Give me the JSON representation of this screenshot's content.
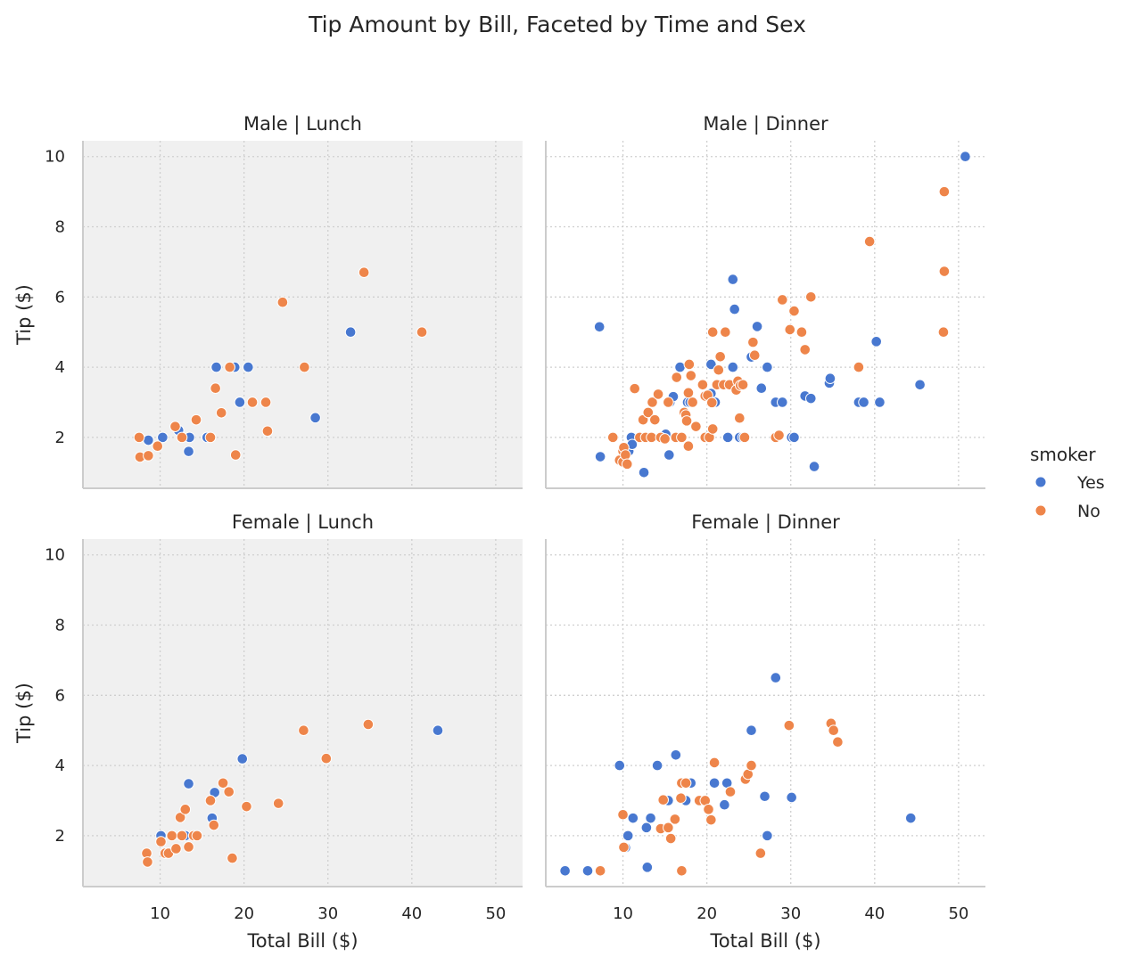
{
  "chart_data": {
    "type": "scatter",
    "title": "Tip Amount by Bill, Faceted by Time and Sex",
    "xlabel": "Total Bill ($)",
    "ylabel": "Tip ($)",
    "xlim": [
      0.8,
      53.2
    ],
    "ylim": [
      0.55,
      10.45
    ],
    "xticks": [
      10,
      20,
      30,
      40,
      50
    ],
    "yticks": [
      2,
      4,
      6,
      8,
      10
    ],
    "grid": true,
    "legend": {
      "title": "smoker",
      "position": "right",
      "entries": [
        {
          "name": "Yes",
          "color": "#4878d0"
        },
        {
          "name": "No",
          "color": "#ee854a"
        }
      ]
    },
    "facets": [
      {
        "title": "Male | Lunch",
        "background": "#f0f0f0",
        "series": [
          {
            "name": "Yes",
            "color": "#4878d0",
            "points": [
              [
                8.6,
                1.92
              ],
              [
                10.3,
                2.0
              ],
              [
                12.2,
                2.2
              ],
              [
                13.4,
                1.6
              ],
              [
                13.5,
                2.0
              ],
              [
                15.6,
                2.0
              ],
              [
                16.7,
                4.0
              ],
              [
                18.9,
                4.0
              ],
              [
                19.5,
                3.0
              ],
              [
                20.5,
                4.0
              ],
              [
                32.7,
                5.0
              ],
              [
                28.5,
                2.56
              ]
            ]
          },
          {
            "name": "No",
            "color": "#ee854a",
            "points": [
              [
                7.5,
                2.0
              ],
              [
                7.6,
                1.44
              ],
              [
                8.6,
                1.48
              ],
              [
                9.7,
                1.75
              ],
              [
                11.8,
                2.31
              ],
              [
                12.6,
                2.0
              ],
              [
                14.3,
                2.5
              ],
              [
                16.0,
                2.0
              ],
              [
                16.6,
                3.4
              ],
              [
                17.3,
                2.7
              ],
              [
                18.3,
                4.0
              ],
              [
                19.0,
                1.5
              ],
              [
                21.0,
                3.0
              ],
              [
                22.6,
                3.0
              ],
              [
                22.8,
                2.18
              ],
              [
                24.6,
                5.85
              ],
              [
                27.2,
                4.0
              ],
              [
                34.3,
                6.7
              ],
              [
                41.2,
                5.0
              ]
            ]
          }
        ]
      },
      {
        "title": "Male | Dinner",
        "background": "#ffffff",
        "series": [
          {
            "name": "Yes",
            "color": "#4878d0",
            "points": [
              [
                7.3,
                1.45
              ],
              [
                7.2,
                5.15
              ],
              [
                10.7,
                1.61
              ],
              [
                11.0,
                2.0
              ],
              [
                11.1,
                1.8
              ],
              [
                12.5,
                1.0
              ],
              [
                15.0,
                2.0
              ],
              [
                15.1,
                2.09
              ],
              [
                15.5,
                1.5
              ],
              [
                15.6,
                3.0
              ],
              [
                16.0,
                3.16
              ],
              [
                16.8,
                4.0
              ],
              [
                17.7,
                3.0
              ],
              [
                18.0,
                3.0
              ],
              [
                20.5,
                4.08
              ],
              [
                20.5,
                3.25
              ],
              [
                21.0,
                3.0
              ],
              [
                22.5,
                2.0
              ],
              [
                23.1,
                4.0
              ],
              [
                23.1,
                6.5
              ],
              [
                23.3,
                5.65
              ],
              [
                23.9,
                2.0
              ],
              [
                24.3,
                2.0
              ],
              [
                25.3,
                4.29
              ],
              [
                26.0,
                5.16
              ],
              [
                26.5,
                3.4
              ],
              [
                27.2,
                4.0
              ],
              [
                28.2,
                3.0
              ],
              [
                29.0,
                3.0
              ],
              [
                30.1,
                2.0
              ],
              [
                30.4,
                2.0
              ],
              [
                31.7,
                3.18
              ],
              [
                32.4,
                3.11
              ],
              [
                32.8,
                1.17
              ],
              [
                34.6,
                3.55
              ],
              [
                34.7,
                3.68
              ],
              [
                38.1,
                3.0
              ],
              [
                38.7,
                3.0
              ],
              [
                40.2,
                4.73
              ],
              [
                40.6,
                3.0
              ],
              [
                45.4,
                3.5
              ],
              [
                50.8,
                10.0
              ]
            ]
          },
          {
            "name": "No",
            "color": "#ee854a",
            "points": [
              [
                8.8,
                2.0
              ],
              [
                9.6,
                1.35
              ],
              [
                10.0,
                1.61
              ],
              [
                10.0,
                1.3
              ],
              [
                10.1,
                1.71
              ],
              [
                10.3,
                1.5
              ],
              [
                10.5,
                1.24
              ],
              [
                11.4,
                3.39
              ],
              [
                12.0,
                2.0
              ],
              [
                12.4,
                2.5
              ],
              [
                12.7,
                2.0
              ],
              [
                13.0,
                2.71
              ],
              [
                13.4,
                2.0
              ],
              [
                13.5,
                3.0
              ],
              [
                13.8,
                2.5
              ],
              [
                14.2,
                3.23
              ],
              [
                14.5,
                2.0
              ],
              [
                15.0,
                1.96
              ],
              [
                15.4,
                3.0
              ],
              [
                16.3,
                2.0
              ],
              [
                16.4,
                3.71
              ],
              [
                17.0,
                2.0
              ],
              [
                17.3,
                2.71
              ],
              [
                17.5,
                2.64
              ],
              [
                17.6,
                2.47
              ],
              [
                17.8,
                1.75
              ],
              [
                17.8,
                3.27
              ],
              [
                17.9,
                4.08
              ],
              [
                18.1,
                3.76
              ],
              [
                18.3,
                3.0
              ],
              [
                18.7,
                2.31
              ],
              [
                19.5,
                3.5
              ],
              [
                19.8,
                2.0
              ],
              [
                19.8,
                3.18
              ],
              [
                20.1,
                3.2
              ],
              [
                20.3,
                2.0
              ],
              [
                20.6,
                2.99
              ],
              [
                20.7,
                2.24
              ],
              [
                20.7,
                5.0
              ],
              [
                21.2,
                3.5
              ],
              [
                21.4,
                3.92
              ],
              [
                21.6,
                4.3
              ],
              [
                22.0,
                3.5
              ],
              [
                22.2,
                5.0
              ],
              [
                22.7,
                3.5
              ],
              [
                23.5,
                3.35
              ],
              [
                23.7,
                3.6
              ],
              [
                23.9,
                2.55
              ],
              [
                24.0,
                3.48
              ],
              [
                24.3,
                3.5
              ],
              [
                24.5,
                2.0
              ],
              [
                25.5,
                4.71
              ],
              [
                25.7,
                4.34
              ],
              [
                28.2,
                2.0
              ],
              [
                28.6,
                2.06
              ],
              [
                29.0,
                5.92
              ],
              [
                29.9,
                5.07
              ],
              [
                30.4,
                5.6
              ],
              [
                31.3,
                5.0
              ],
              [
                31.7,
                4.5
              ],
              [
                32.4,
                6.0
              ],
              [
                38.1,
                4.0
              ],
              [
                39.4,
                7.58
              ],
              [
                48.2,
                5.0
              ],
              [
                48.3,
                6.73
              ],
              [
                48.3,
                9.0
              ]
            ]
          }
        ]
      },
      {
        "title": "Female | Lunch",
        "background": "#f0f0f0",
        "series": [
          {
            "name": "Yes",
            "color": "#4878d0",
            "points": [
              [
                10.1,
                2.0
              ],
              [
                12.6,
                2.0
              ],
              [
                13.0,
                2.0
              ],
              [
                13.4,
                3.48
              ],
              [
                16.2,
                2.5
              ],
              [
                16.5,
                3.23
              ],
              [
                19.8,
                4.19
              ],
              [
                43.1,
                5.0
              ]
            ]
          },
          {
            "name": "No",
            "color": "#ee854a",
            "points": [
              [
                8.4,
                1.5
              ],
              [
                8.5,
                1.25
              ],
              [
                10.1,
                1.83
              ],
              [
                10.6,
                1.5
              ],
              [
                11.0,
                1.5
              ],
              [
                11.4,
                2.0
              ],
              [
                11.9,
                1.63
              ],
              [
                12.4,
                2.52
              ],
              [
                12.6,
                2.0
              ],
              [
                13.0,
                2.75
              ],
              [
                13.4,
                1.68
              ],
              [
                14.0,
                2.0
              ],
              [
                14.4,
                2.0
              ],
              [
                16.0,
                3.0
              ],
              [
                16.4,
                2.3
              ],
              [
                17.5,
                3.5
              ],
              [
                18.2,
                3.25
              ],
              [
                18.6,
                1.36
              ],
              [
                20.3,
                2.83
              ],
              [
                24.1,
                2.92
              ],
              [
                27.1,
                5.0
              ],
              [
                29.8,
                4.2
              ],
              [
                34.8,
                5.17
              ]
            ]
          }
        ]
      },
      {
        "title": "Female | Dinner",
        "background": "#ffffff",
        "series": [
          {
            "name": "Yes",
            "color": "#4878d0",
            "points": [
              [
                3.1,
                1.0
              ],
              [
                5.8,
                1.0
              ],
              [
                9.6,
                4.0
              ],
              [
                10.3,
                1.66
              ],
              [
                10.6,
                2.0
              ],
              [
                11.2,
                2.5
              ],
              [
                12.8,
                2.23
              ],
              [
                12.9,
                1.1
              ],
              [
                13.3,
                2.5
              ],
              [
                14.1,
                4.0
              ],
              [
                15.4,
                3.0
              ],
              [
                16.3,
                4.3
              ],
              [
                17.5,
                3.0
              ],
              [
                18.1,
                3.5
              ],
              [
                20.9,
                3.5
              ],
              [
                22.1,
                2.88
              ],
              [
                22.4,
                3.5
              ],
              [
                25.3,
                5.0
              ],
              [
                26.9,
                3.12
              ],
              [
                27.2,
                2.0
              ],
              [
                28.2,
                6.5
              ],
              [
                30.1,
                3.09
              ],
              [
                44.3,
                2.5
              ]
            ]
          },
          {
            "name": "No",
            "color": "#ee854a",
            "points": [
              [
                7.3,
                1.0
              ],
              [
                10.0,
                2.6
              ],
              [
                10.1,
                1.67
              ],
              [
                14.5,
                2.2
              ],
              [
                14.8,
                3.02
              ],
              [
                15.4,
                2.23
              ],
              [
                15.7,
                1.92
              ],
              [
                16.2,
                2.47
              ],
              [
                16.9,
                3.07
              ],
              [
                17.0,
                1.0
              ],
              [
                17.0,
                3.5
              ],
              [
                17.5,
                3.5
              ],
              [
                19.1,
                3.0
              ],
              [
                19.8,
                3.0
              ],
              [
                20.2,
                2.75
              ],
              [
                20.5,
                2.45
              ],
              [
                20.9,
                4.08
              ],
              [
                22.8,
                3.25
              ],
              [
                24.6,
                3.61
              ],
              [
                24.9,
                3.75
              ],
              [
                25.3,
                4.0
              ],
              [
                26.4,
                1.5
              ],
              [
                29.8,
                5.14
              ],
              [
                34.8,
                5.2
              ],
              [
                35.1,
                5.0
              ],
              [
                35.6,
                4.67
              ]
            ]
          }
        ]
      }
    ]
  }
}
